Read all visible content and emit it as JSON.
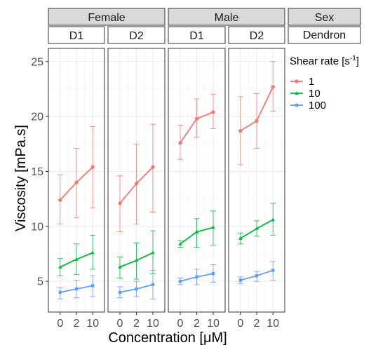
{
  "chart_data": {
    "type": "line",
    "ylabel": "Viscosity [mPa.s]",
    "xlabel": "Concentration [μM]",
    "x_categories": [
      "0",
      "2",
      "10"
    ],
    "yticks": [
      5,
      10,
      15,
      20,
      25
    ],
    "ylim": [
      2.2,
      26.2
    ],
    "grid": true,
    "legend": {
      "title_main": "Shear rate [s",
      "title_sup": "-1",
      "title_end": "]",
      "placement": "right"
    },
    "facet_strips": {
      "sex_header": "Sex",
      "dendron_header": "Dendron",
      "groups": [
        {
          "label": "Female",
          "panels": [
            "D1",
            "D2"
          ]
        },
        {
          "label": "Male",
          "panels": [
            "D1",
            "D2"
          ]
        }
      ]
    },
    "series_style": [
      {
        "name": "1",
        "color": "#F8766D",
        "marker": "circle"
      },
      {
        "name": "10",
        "color": "#00BA38",
        "marker": "triangle"
      },
      {
        "name": "100",
        "color": "#619CFF",
        "marker": "square"
      }
    ],
    "panels": [
      {
        "sex": "Female",
        "dendron": "D1",
        "series": [
          {
            "name": "1",
            "values": [
              12.4,
              14.0,
              15.4
            ],
            "err_low": [
              10.2,
              10.8,
              11.7
            ],
            "err_high": [
              14.7,
              17.1,
              19.1
            ]
          },
          {
            "name": "10",
            "values": [
              6.3,
              7.0,
              7.6
            ],
            "err_low": [
              5.5,
              5.6,
              6.1
            ],
            "err_high": [
              7.1,
              8.4,
              9.2
            ]
          },
          {
            "name": "100",
            "values": [
              4.0,
              4.3,
              4.6
            ],
            "err_low": [
              3.4,
              3.5,
              3.6
            ],
            "err_high": [
              4.4,
              5.1,
              5.5
            ]
          }
        ]
      },
      {
        "sex": "Female",
        "dendron": "D2",
        "series": [
          {
            "name": "1",
            "values": [
              12.1,
              13.9,
              15.4
            ],
            "err_low": [
              9.5,
              10.2,
              11.3
            ],
            "err_high": [
              14.6,
              17.5,
              19.3
            ]
          },
          {
            "name": "10",
            "values": [
              6.3,
              6.9,
              7.6
            ],
            "err_low": [
              5.3,
              5.2,
              5.7
            ],
            "err_high": [
              7.2,
              8.5,
              9.6
            ]
          },
          {
            "name": "100",
            "values": [
              4.0,
              4.3,
              4.7
            ],
            "err_low": [
              3.5,
              3.6,
              3.4
            ],
            "err_high": [
              4.5,
              5.0,
              6.0
            ]
          }
        ]
      },
      {
        "sex": "Male",
        "dendron": "D1",
        "series": [
          {
            "name": "1",
            "values": [
              17.6,
              19.8,
              20.4
            ],
            "err_low": [
              16.1,
              18.1,
              18.9
            ],
            "err_high": [
              19.2,
              21.6,
              22.0
            ]
          },
          {
            "name": "10",
            "values": [
              8.4,
              9.5,
              9.9
            ],
            "err_low": [
              8.1,
              8.1,
              8.3
            ],
            "err_high": [
              8.7,
              10.7,
              11.4
            ]
          },
          {
            "name": "100",
            "values": [
              5.0,
              5.4,
              5.7
            ],
            "err_low": [
              4.7,
              4.7,
              4.9
            ],
            "err_high": [
              5.3,
              6.1,
              6.5
            ]
          }
        ]
      },
      {
        "sex": "Male",
        "dendron": "D2",
        "series": [
          {
            "name": "1",
            "values": [
              18.7,
              19.6,
              22.7
            ],
            "err_low": [
              15.6,
              17.1,
              20.5
            ],
            "err_high": [
              21.8,
              22.1,
              25.0
            ]
          },
          {
            "name": "10",
            "values": [
              8.9,
              9.8,
              10.6
            ],
            "err_low": [
              8.4,
              9.1,
              9.2
            ],
            "err_high": [
              9.4,
              10.5,
              12.1
            ]
          },
          {
            "name": "100",
            "values": [
              5.1,
              5.5,
              6.0
            ],
            "err_low": [
              4.8,
              5.0,
              5.1
            ],
            "err_high": [
              5.4,
              5.9,
              6.8
            ]
          }
        ]
      }
    ]
  }
}
